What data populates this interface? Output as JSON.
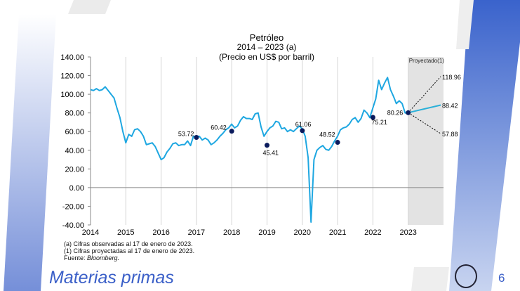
{
  "slide": {
    "section_title": "Materias primas",
    "page_number": "6",
    "accent_color": "#3a5fc8"
  },
  "notes": {
    "line1": "(a) Cifras observadas al 17 de enero de 2023.",
    "line2": "(1) Cifras proyectadas al 17 de enero de 2023.",
    "source_prefix": "Fuente: ",
    "source": "Bloomberg."
  },
  "chart_data": {
    "type": "line",
    "title": "Petróleo",
    "subtitle": "2014 – 2023 (a)",
    "unit_label": "(Precio en US$ por barril)",
    "ylim": [
      -40,
      140
    ],
    "yticks": [
      "140.00",
      "120.00",
      "100.00",
      "80.00",
      "60.00",
      "40.00",
      "20.00",
      "0.00",
      "-20.00",
      "-40.00"
    ],
    "ytick_values": [
      140,
      120,
      100,
      80,
      60,
      40,
      20,
      0,
      -20,
      -40
    ],
    "xlim": [
      2014,
      2024
    ],
    "xticks": [
      "2014",
      "2015",
      "2016",
      "2017",
      "2018",
      "2019",
      "2020",
      "2021",
      "2022",
      "2023"
    ],
    "series_color": "#1ea7e1",
    "series": [
      {
        "name": "Precio observado",
        "start": 2014.0,
        "step_years": 0.0833,
        "values": [
          105,
          104,
          106,
          104,
          105,
          108,
          104,
          100,
          96,
          85,
          75,
          60,
          48,
          57,
          55,
          62,
          63,
          60,
          55,
          46,
          47,
          48,
          44,
          37,
          30,
          32,
          38,
          42,
          47,
          48,
          45,
          46,
          46,
          50,
          45,
          55,
          55,
          55,
          51,
          53,
          51,
          46,
          48,
          51,
          55,
          58,
          62,
          64,
          68,
          64,
          66,
          72,
          76,
          74,
          74,
          73,
          79,
          80,
          65,
          55,
          60,
          64,
          66,
          71,
          70,
          63,
          64,
          60,
          62,
          60,
          63,
          66,
          63,
          55,
          32,
          -37,
          30,
          40,
          43,
          45,
          41,
          40,
          44,
          50,
          55,
          62,
          64,
          65,
          68,
          73,
          75,
          70,
          74,
          83,
          80,
          75,
          85,
          95,
          115,
          105,
          112,
          118,
          105,
          98,
          90,
          93,
          90,
          80,
          80.26
        ]
      }
    ],
    "markers": [
      {
        "x": 2017.0,
        "y": 53.72,
        "label": "53.72"
      },
      {
        "x": 2018.0,
        "y": 60.42,
        "label": "60.42"
      },
      {
        "x": 2019.0,
        "y": 45.41,
        "label": "45.41"
      },
      {
        "x": 2020.0,
        "y": 61.06,
        "label": "61.06"
      },
      {
        "x": 2021.0,
        "y": 48.52,
        "label": "48.52"
      },
      {
        "x": 2022.0,
        "y": 75.21,
        "label": "75.21"
      },
      {
        "x": 2023.0,
        "y": 80.26,
        "label": "80.26"
      }
    ],
    "projection": {
      "label": "Proyectado(1)",
      "start": [
        2023.0,
        80.26
      ],
      "end_x": 2024.0,
      "high": {
        "y": 118.96,
        "label": "118.96"
      },
      "mid": {
        "y": 88.42,
        "label": "88.42"
      },
      "low": {
        "y": 57.88,
        "label": "57.88"
      }
    }
  }
}
